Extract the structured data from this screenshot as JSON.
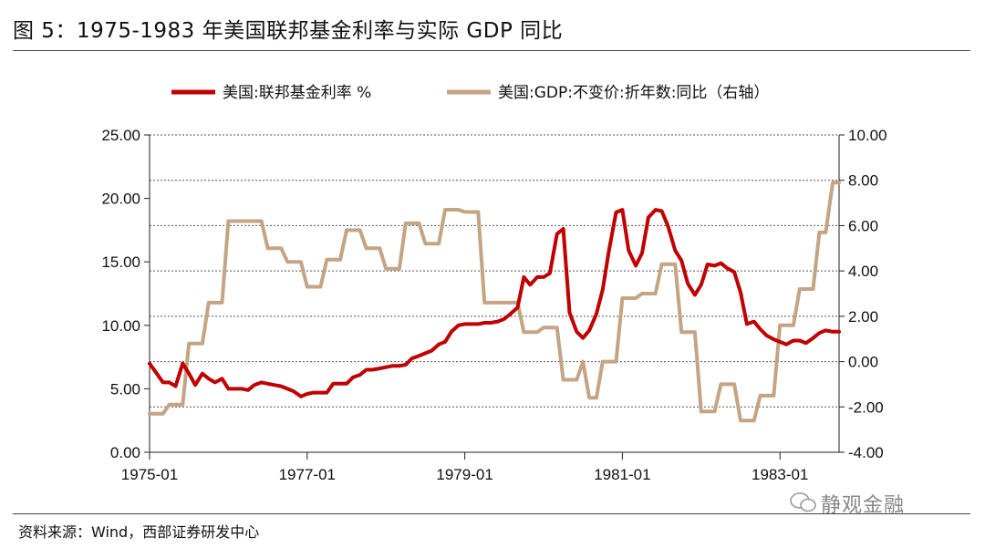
{
  "title": "图 5：1975-1983 年美国联邦基金利率与实际 GDP 同比",
  "source": "资料来源：Wind，西部证券研发中心",
  "watermark": "静观金融",
  "chart_data": {
    "type": "line",
    "x_start": 1975.0,
    "x_end": 1983.75,
    "x_ticks": [
      {
        "label": "1975-01",
        "x": 1975.0
      },
      {
        "label": "1977-01",
        "x": 1977.0
      },
      {
        "label": "1979-01",
        "x": 1979.0
      },
      {
        "label": "1981-01",
        "x": 1981.0
      },
      {
        "label": "1983-01",
        "x": 1983.0
      }
    ],
    "y_left": {
      "min": 0,
      "max": 25,
      "step": 5,
      "decimals": 2
    },
    "y_right": {
      "min": -4,
      "max": 10,
      "step": 2,
      "decimals": 2
    },
    "gridlines": "dashed",
    "series": [
      {
        "name": "美国:联邦基金利率 %",
        "axis": "left",
        "color": "#C00000",
        "points": [
          [
            1975.0,
            7.0
          ],
          [
            1975.08,
            6.3
          ],
          [
            1975.17,
            5.5
          ],
          [
            1975.25,
            5.5
          ],
          [
            1975.33,
            5.2
          ],
          [
            1975.42,
            7.0
          ],
          [
            1975.5,
            6.2
          ],
          [
            1975.58,
            5.3
          ],
          [
            1975.67,
            6.2
          ],
          [
            1975.75,
            5.8
          ],
          [
            1975.83,
            5.5
          ],
          [
            1975.92,
            5.8
          ],
          [
            1976.0,
            5.0
          ],
          [
            1976.08,
            5.0
          ],
          [
            1976.17,
            5.0
          ],
          [
            1976.25,
            4.9
          ],
          [
            1976.33,
            5.3
          ],
          [
            1976.42,
            5.5
          ],
          [
            1976.5,
            5.4
          ],
          [
            1976.58,
            5.3
          ],
          [
            1976.67,
            5.2
          ],
          [
            1976.75,
            5.0
          ],
          [
            1976.83,
            4.8
          ],
          [
            1976.92,
            4.4
          ],
          [
            1977.0,
            4.6
          ],
          [
            1977.08,
            4.7
          ],
          [
            1977.17,
            4.7
          ],
          [
            1977.25,
            4.7
          ],
          [
            1977.33,
            5.4
          ],
          [
            1977.42,
            5.4
          ],
          [
            1977.5,
            5.4
          ],
          [
            1977.58,
            5.9
          ],
          [
            1977.67,
            6.1
          ],
          [
            1977.75,
            6.5
          ],
          [
            1977.83,
            6.5
          ],
          [
            1977.92,
            6.6
          ],
          [
            1978.0,
            6.7
          ],
          [
            1978.08,
            6.8
          ],
          [
            1978.17,
            6.8
          ],
          [
            1978.25,
            6.9
          ],
          [
            1978.33,
            7.4
          ],
          [
            1978.42,
            7.6
          ],
          [
            1978.5,
            7.8
          ],
          [
            1978.58,
            8.0
          ],
          [
            1978.67,
            8.5
          ],
          [
            1978.75,
            8.7
          ],
          [
            1978.83,
            9.5
          ],
          [
            1978.92,
            10.0
          ],
          [
            1979.0,
            10.1
          ],
          [
            1979.08,
            10.1
          ],
          [
            1979.17,
            10.1
          ],
          [
            1979.25,
            10.2
          ],
          [
            1979.33,
            10.2
          ],
          [
            1979.42,
            10.3
          ],
          [
            1979.5,
            10.5
          ],
          [
            1979.58,
            10.9
          ],
          [
            1979.67,
            11.4
          ],
          [
            1979.75,
            13.8
          ],
          [
            1979.83,
            13.2
          ],
          [
            1979.92,
            13.8
          ],
          [
            1980.0,
            13.8
          ],
          [
            1980.08,
            14.1
          ],
          [
            1980.17,
            17.2
          ],
          [
            1980.25,
            17.6
          ],
          [
            1980.33,
            11.0
          ],
          [
            1980.42,
            9.5
          ],
          [
            1980.5,
            9.0
          ],
          [
            1980.58,
            9.6
          ],
          [
            1980.67,
            10.9
          ],
          [
            1980.75,
            12.8
          ],
          [
            1980.83,
            15.9
          ],
          [
            1980.92,
            18.9
          ],
          [
            1981.0,
            19.1
          ],
          [
            1981.08,
            15.9
          ],
          [
            1981.17,
            14.7
          ],
          [
            1981.25,
            15.7
          ],
          [
            1981.33,
            18.5
          ],
          [
            1981.42,
            19.1
          ],
          [
            1981.5,
            19.0
          ],
          [
            1981.58,
            17.8
          ],
          [
            1981.67,
            15.9
          ],
          [
            1981.75,
            15.1
          ],
          [
            1981.83,
            13.3
          ],
          [
            1981.92,
            12.4
          ],
          [
            1982.0,
            13.2
          ],
          [
            1982.08,
            14.8
          ],
          [
            1982.17,
            14.7
          ],
          [
            1982.25,
            14.9
          ],
          [
            1982.33,
            14.5
          ],
          [
            1982.42,
            14.2
          ],
          [
            1982.5,
            12.6
          ],
          [
            1982.58,
            10.1
          ],
          [
            1982.67,
            10.3
          ],
          [
            1982.75,
            9.7
          ],
          [
            1982.83,
            9.2
          ],
          [
            1982.92,
            8.9
          ],
          [
            1983.0,
            8.7
          ],
          [
            1983.08,
            8.5
          ],
          [
            1983.17,
            8.8
          ],
          [
            1983.25,
            8.8
          ],
          [
            1983.33,
            8.6
          ],
          [
            1983.42,
            9.0
          ],
          [
            1983.5,
            9.4
          ],
          [
            1983.58,
            9.6
          ],
          [
            1983.67,
            9.5
          ],
          [
            1983.75,
            9.5
          ]
        ]
      },
      {
        "name": "美国:GDP:不变价:折年数:同比（右轴）",
        "axis": "right",
        "color": "#C4A484",
        "points": [
          [
            1975.0,
            -2.3
          ],
          [
            1975.08,
            -2.3
          ],
          [
            1975.17,
            -2.3
          ],
          [
            1975.25,
            -1.9
          ],
          [
            1975.33,
            -1.9
          ],
          [
            1975.42,
            -1.9
          ],
          [
            1975.5,
            0.8
          ],
          [
            1975.58,
            0.8
          ],
          [
            1975.67,
            0.8
          ],
          [
            1975.75,
            2.6
          ],
          [
            1975.83,
            2.6
          ],
          [
            1975.92,
            2.6
          ],
          [
            1976.0,
            6.2
          ],
          [
            1976.08,
            6.2
          ],
          [
            1976.17,
            6.2
          ],
          [
            1976.25,
            6.2
          ],
          [
            1976.33,
            6.2
          ],
          [
            1976.42,
            6.2
          ],
          [
            1976.5,
            5.0
          ],
          [
            1976.58,
            5.0
          ],
          [
            1976.67,
            5.0
          ],
          [
            1976.75,
            4.4
          ],
          [
            1976.83,
            4.4
          ],
          [
            1976.92,
            4.4
          ],
          [
            1977.0,
            3.3
          ],
          [
            1977.08,
            3.3
          ],
          [
            1977.17,
            3.3
          ],
          [
            1977.25,
            4.5
          ],
          [
            1977.33,
            4.5
          ],
          [
            1977.42,
            4.5
          ],
          [
            1977.5,
            5.8
          ],
          [
            1977.58,
            5.8
          ],
          [
            1977.67,
            5.8
          ],
          [
            1977.75,
            5.0
          ],
          [
            1977.83,
            5.0
          ],
          [
            1977.92,
            5.0
          ],
          [
            1978.0,
            4.1
          ],
          [
            1978.08,
            4.1
          ],
          [
            1978.17,
            4.1
          ],
          [
            1978.25,
            6.1
          ],
          [
            1978.33,
            6.1
          ],
          [
            1978.42,
            6.1
          ],
          [
            1978.5,
            5.2
          ],
          [
            1978.58,
            5.2
          ],
          [
            1978.67,
            5.2
          ],
          [
            1978.75,
            6.7
          ],
          [
            1978.83,
            6.7
          ],
          [
            1978.92,
            6.7
          ],
          [
            1979.0,
            6.6
          ],
          [
            1979.08,
            6.6
          ],
          [
            1979.17,
            6.6
          ],
          [
            1979.25,
            2.6
          ],
          [
            1979.33,
            2.6
          ],
          [
            1979.42,
            2.6
          ],
          [
            1979.5,
            2.6
          ],
          [
            1979.58,
            2.6
          ],
          [
            1979.67,
            2.6
          ],
          [
            1979.75,
            1.3
          ],
          [
            1979.83,
            1.3
          ],
          [
            1979.92,
            1.3
          ],
          [
            1980.0,
            1.5
          ],
          [
            1980.08,
            1.5
          ],
          [
            1980.17,
            1.5
          ],
          [
            1980.25,
            -0.8
          ],
          [
            1980.33,
            -0.8
          ],
          [
            1980.42,
            -0.8
          ],
          [
            1980.5,
            0.0
          ],
          [
            1980.58,
            -1.6
          ],
          [
            1980.67,
            -1.6
          ],
          [
            1980.75,
            0.0
          ],
          [
            1980.83,
            0.0
          ],
          [
            1980.92,
            0.0
          ],
          [
            1981.0,
            2.8
          ],
          [
            1981.08,
            2.8
          ],
          [
            1981.17,
            2.8
          ],
          [
            1981.25,
            3.0
          ],
          [
            1981.33,
            3.0
          ],
          [
            1981.42,
            3.0
          ],
          [
            1981.5,
            4.3
          ],
          [
            1981.58,
            4.3
          ],
          [
            1981.67,
            4.3
          ],
          [
            1981.75,
            1.3
          ],
          [
            1981.83,
            1.3
          ],
          [
            1981.92,
            1.3
          ],
          [
            1982.0,
            -2.2
          ],
          [
            1982.08,
            -2.2
          ],
          [
            1982.17,
            -2.2
          ],
          [
            1982.25,
            -1.0
          ],
          [
            1982.33,
            -1.0
          ],
          [
            1982.42,
            -1.0
          ],
          [
            1982.5,
            -2.6
          ],
          [
            1982.58,
            -2.6
          ],
          [
            1982.67,
            -2.6
          ],
          [
            1982.75,
            -1.5
          ],
          [
            1982.83,
            -1.5
          ],
          [
            1982.92,
            -1.5
          ],
          [
            1983.0,
            1.6
          ],
          [
            1983.08,
            1.6
          ],
          [
            1983.17,
            1.6
          ],
          [
            1983.25,
            3.2
          ],
          [
            1983.33,
            3.2
          ],
          [
            1983.42,
            3.2
          ],
          [
            1983.5,
            5.7
          ],
          [
            1983.58,
            5.7
          ],
          [
            1983.67,
            7.9
          ],
          [
            1983.75,
            7.9
          ]
        ]
      }
    ]
  }
}
